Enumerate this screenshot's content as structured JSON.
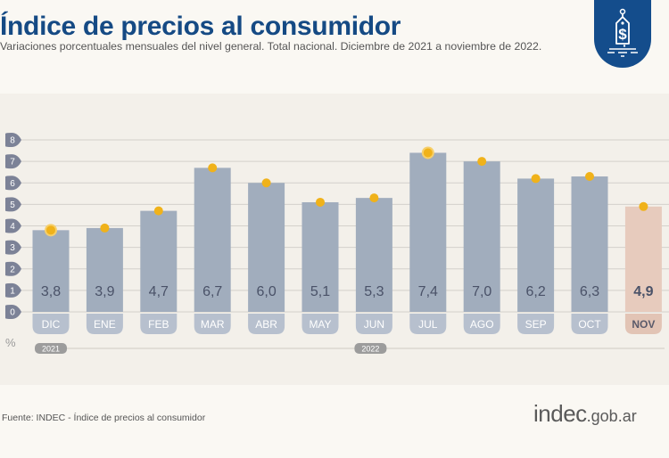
{
  "header": {
    "title": "Índice de precios al consumidor",
    "subtitle": "Variaciones porcentuales mensuales del nivel general. Total nacional. Diciembre de 2021 a noviembre de 2022.",
    "badge_icon": "price-tag-dollar-icon"
  },
  "colors": {
    "title": "#154a84",
    "bar": "#a1adbd",
    "bar_highlight": "#e7cbbd",
    "month_label_bg": "#b7c0ce",
    "month_label_bg_highlight": "#e2c4b5",
    "value_text": "#4a5268",
    "marker": "#f0b21a",
    "axis_bubble": "#7c8297",
    "year_badge": "#9c9c9c",
    "badge": "#144d8c"
  },
  "chart_data": {
    "type": "bar",
    "title": "Índice de precios al consumidor",
    "subtitle": "Variaciones porcentuales mensuales del nivel general. Total nacional. Diciembre de 2021 a noviembre de 2022.",
    "xlabel": "",
    "ylabel": "%",
    "ylim": [
      0,
      8
    ],
    "yticks": [
      0,
      1,
      2,
      3,
      4,
      5,
      6,
      7,
      8
    ],
    "grid": true,
    "categories": [
      "DIC",
      "ENE",
      "FEB",
      "MAR",
      "ABR",
      "MAY",
      "JUN",
      "JUL",
      "AGO",
      "SEP",
      "OCT",
      "NOV"
    ],
    "values": [
      3.8,
      3.9,
      4.7,
      6.7,
      6.0,
      5.1,
      5.3,
      7.4,
      7.0,
      6.2,
      6.3,
      4.9
    ],
    "value_labels": [
      "3,8",
      "3,9",
      "4,7",
      "6,7",
      "6,0",
      "5,1",
      "5,3",
      "7,4",
      "7,0",
      "6,2",
      "6,3",
      "4,9"
    ],
    "highlight_index": 11,
    "ringed_markers": [
      0,
      7
    ],
    "year_groups": [
      {
        "label": "2021",
        "start_index": 0
      },
      {
        "label": "2022",
        "start_index": 1
      }
    ]
  },
  "footer": {
    "source": "Fuente: INDEC - Índice de precios al consumidor",
    "logo_main": "indec",
    "logo_domain": ".gob.ar"
  }
}
